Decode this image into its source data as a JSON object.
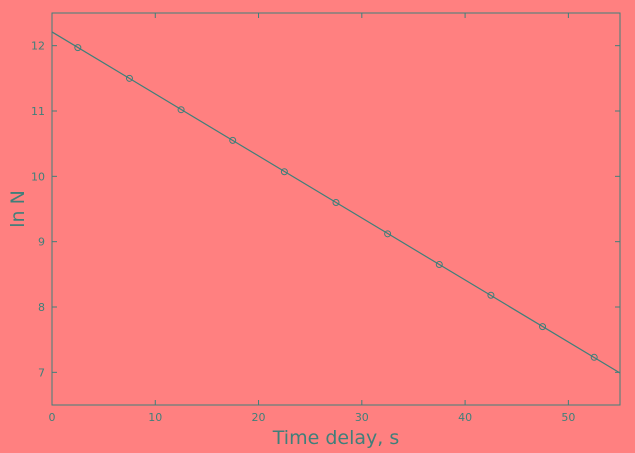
{
  "colors": {
    "background": "#ff8080",
    "ink": "#3f7f7a"
  },
  "chart_data": {
    "type": "scatter",
    "title": "",
    "xlabel": "Time delay, s",
    "ylabel": "ln N",
    "xlim": [
      0,
      55
    ],
    "ylim": [
      6.5,
      12.5
    ],
    "x_ticks": [
      "0",
      "10",
      "20",
      "30",
      "40",
      "50"
    ],
    "y_ticks": [
      "7",
      "8",
      "9",
      "10",
      "11",
      "12"
    ],
    "grid": false,
    "series": [
      {
        "marker": "open-circle",
        "x": [
          2.5,
          7.5,
          12.5,
          17.5,
          22.5,
          27.5,
          32.5,
          37.5,
          42.5,
          47.5,
          52.5
        ],
        "y": [
          11.97,
          11.5,
          11.02,
          10.55,
          10.07,
          9.6,
          9.12,
          8.65,
          8.18,
          7.7,
          7.23
        ]
      }
    ],
    "fit_line": {
      "x": [
        0,
        55
      ],
      "y": [
        12.21,
        6.99
      ]
    }
  }
}
